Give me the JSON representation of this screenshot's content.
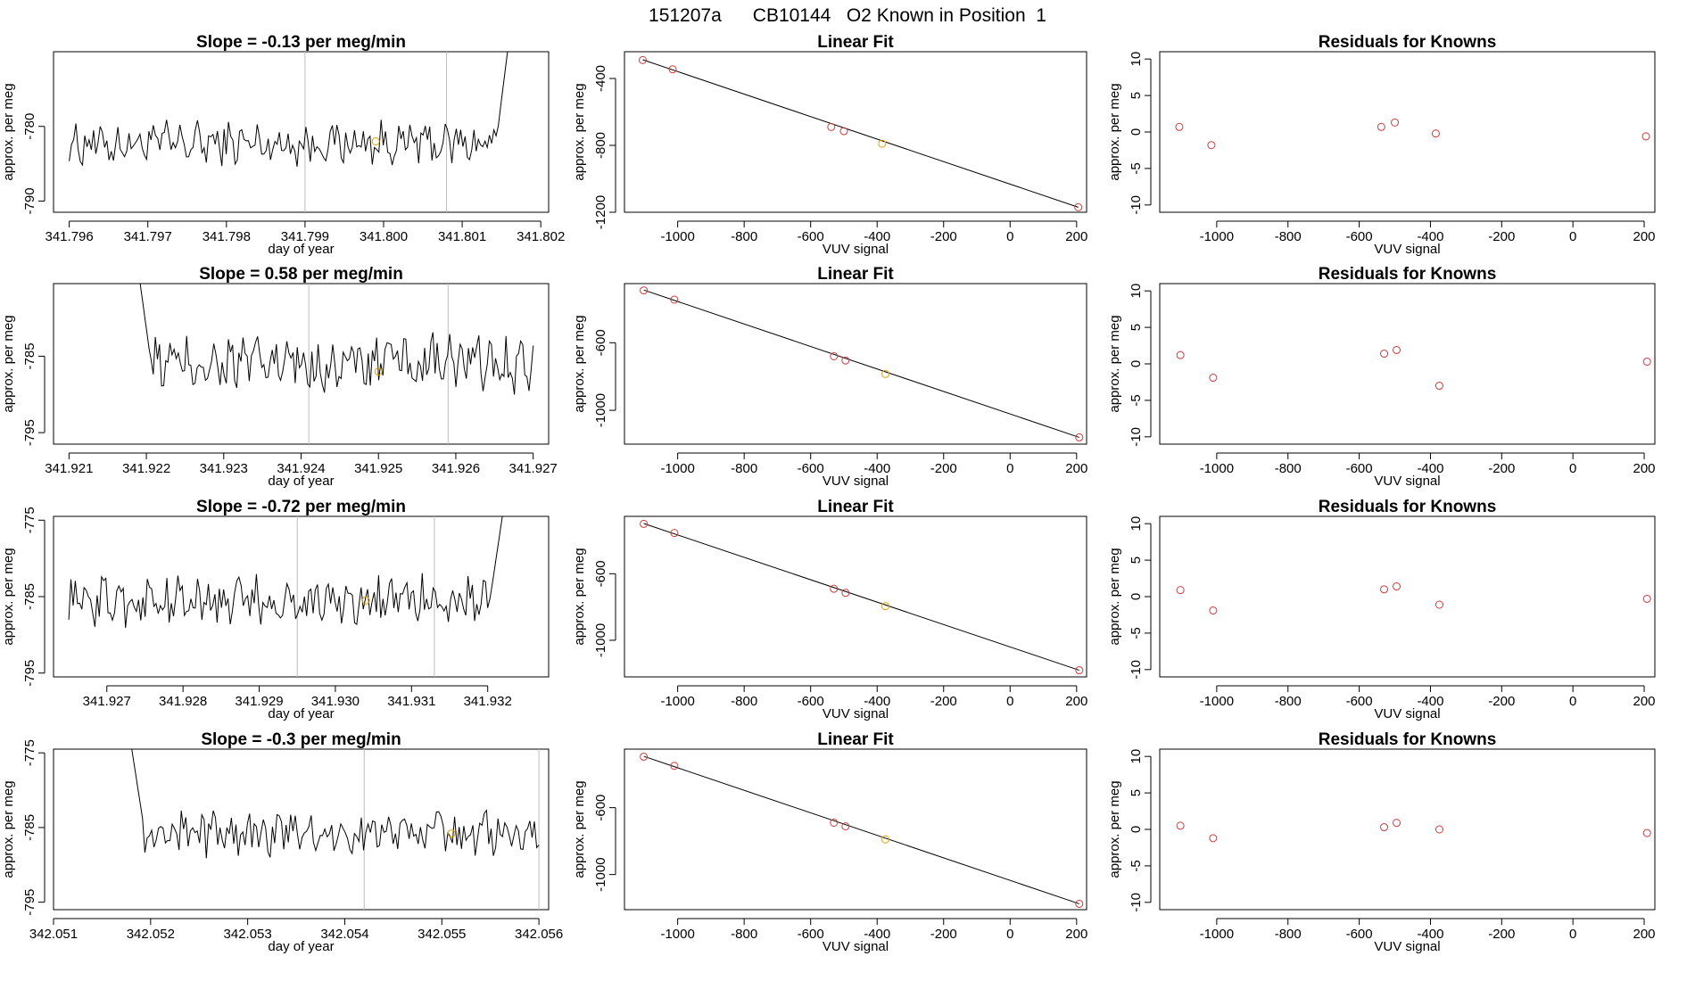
{
  "figure_title": "151207a      CB10144   O2 Known in Position  1",
  "chart_data": [
    {
      "type": "line",
      "title": "Slope =  -0.13  per meg/min",
      "xlabel": "day of year",
      "ylabel": "approx. per meg",
      "xlim": [
        341.7958,
        341.8021
      ],
      "ylim": [
        -791.5,
        -770.0
      ],
      "xticks": [
        "341.796",
        "341.797",
        "341.798",
        "341.799",
        "341.800",
        "341.801",
        "341.802"
      ],
      "yticks": [
        "-780",
        "-790"
      ],
      "vlines": [
        341.799,
        341.8008
      ],
      "x_start": 341.796,
      "x_end": 341.8016,
      "n_points": 200,
      "baseline": -782.3,
      "noise_amplitude": 2.4,
      "end_spike_to": -768.0,
      "marker": {
        "x": 341.7999,
        "y": -782.0,
        "color": "#E69F00"
      }
    },
    {
      "type": "scatter",
      "title": "Linear Fit",
      "xlabel": "VUV signal",
      "ylabel": "approx. per meg",
      "xlim": [
        -1160,
        230
      ],
      "ylim": [
        -1200,
        -240
      ],
      "xticks": [
        "-1000",
        "-800",
        "-600",
        "-400",
        "-200",
        "0",
        "200"
      ],
      "yticks": [
        "-400",
        "-800",
        "-1200"
      ],
      "x": [
        -1105,
        -1015,
        -538,
        -500,
        -385,
        205
      ],
      "y": [
        -290,
        -345,
        -690,
        -715,
        -790,
        -1170
      ],
      "known_index": 4,
      "fit_line": [
        [
          -1105,
          -288
        ],
        [
          205,
          -1170
        ]
      ]
    },
    {
      "type": "scatter",
      "title": "Residuals for Knowns",
      "xlabel": "VUV signal",
      "ylabel": "approx. per meg",
      "xlim": [
        -1160,
        230
      ],
      "ylim": [
        -11,
        11
      ],
      "xticks": [
        "-1000",
        "-800",
        "-600",
        "-400",
        "-200",
        "0",
        "200"
      ],
      "yticks": [
        "10",
        "5",
        "0",
        "-5",
        "-10"
      ],
      "x": [
        -1105,
        -1015,
        -538,
        -500,
        -385,
        205
      ],
      "y": [
        0.7,
        -1.8,
        0.7,
        1.3,
        -0.2,
        -0.6
      ]
    },
    {
      "type": "line",
      "title": "Slope =  0.58  per meg/min",
      "xlabel": "day of year",
      "ylabel": "approx. per meg",
      "xlim": [
        341.9208,
        341.9272
      ],
      "ylim": [
        -796.5,
        -775.5
      ],
      "xticks": [
        "341.921",
        "341.922",
        "341.923",
        "341.924",
        "341.925",
        "341.926",
        "341.927"
      ],
      "yticks": [
        "-785",
        "-795"
      ],
      "vlines": [
        341.9241,
        341.9259
      ],
      "x_start": 341.9219,
      "x_end": 341.927,
      "n_points": 190,
      "baseline": -786.0,
      "noise_amplitude": 3.0,
      "start_spike_from": -774.0,
      "marker": {
        "x": 341.925,
        "y": -787.0,
        "color": "#E69F00"
      }
    },
    {
      "type": "scatter",
      "title": "Linear Fit",
      "xlabel": "VUV signal",
      "ylabel": "approx. per meg",
      "xlim": [
        -1160,
        230
      ],
      "ylim": [
        -1200,
        -250
      ],
      "xticks": [
        "-1000",
        "-800",
        "-600",
        "-400",
        "-200",
        "0",
        "200"
      ],
      "yticks": [
        "-600",
        "-1000"
      ],
      "x": [
        -1102,
        -1010,
        -530,
        -495,
        -375,
        208
      ],
      "y": [
        -290,
        -345,
        -680,
        -705,
        -785,
        -1160
      ],
      "known_index": 4,
      "fit_line": [
        [
          -1102,
          -288
        ],
        [
          208,
          -1160
        ]
      ]
    },
    {
      "type": "scatter",
      "title": "Residuals for Knowns",
      "xlabel": "VUV signal",
      "ylabel": "approx. per meg",
      "xlim": [
        -1160,
        230
      ],
      "ylim": [
        -11,
        11
      ],
      "xticks": [
        "-1000",
        "-800",
        "-600",
        "-400",
        "-200",
        "0",
        "200"
      ],
      "yticks": [
        "10",
        "5",
        "0",
        "-5",
        "-10"
      ],
      "x": [
        -1102,
        -1010,
        -530,
        -495,
        -375,
        208
      ],
      "y": [
        1.2,
        -1.9,
        1.4,
        1.9,
        -3.0,
        0.3
      ]
    },
    {
      "type": "line",
      "title": "Slope =  -0.72  per meg/min",
      "xlabel": "day of year",
      "ylabel": "approx. per meg",
      "xlim": [
        341.9263,
        341.9328
      ],
      "ylim": [
        -795.5,
        -774.5
      ],
      "xticks": [
        "341.927",
        "341.928",
        "341.929",
        "341.930",
        "341.931",
        "341.932"
      ],
      "yticks": [
        "-775",
        "-785",
        "-795"
      ],
      "vlines": [
        341.9295,
        341.9313
      ],
      "x_start": 341.9265,
      "x_end": 341.9322,
      "n_points": 200,
      "baseline": -785.5,
      "noise_amplitude": 2.6,
      "end_spike_to": -774.0,
      "marker": {
        "x": 341.9304,
        "y": -785.5,
        "color": "#E69F00"
      }
    },
    {
      "type": "scatter",
      "title": "Linear Fit",
      "xlabel": "VUV signal",
      "ylabel": "approx. per meg",
      "xlim": [
        -1160,
        230
      ],
      "ylim": [
        -1220,
        -255
      ],
      "xticks": [
        "-1000",
        "-800",
        "-600",
        "-400",
        "-200",
        "0",
        "200"
      ],
      "yticks": [
        "-600",
        "-1000"
      ],
      "x": [
        -1102,
        -1010,
        -530,
        -495,
        -375,
        208
      ],
      "y": [
        -300,
        -355,
        -690,
        -715,
        -795,
        -1180
      ],
      "known_index": 4,
      "fit_line": [
        [
          -1102,
          -298
        ],
        [
          208,
          -1180
        ]
      ]
    },
    {
      "type": "scatter",
      "title": "Residuals for Knowns",
      "xlabel": "VUV signal",
      "ylabel": "approx. per meg",
      "xlim": [
        -1160,
        230
      ],
      "ylim": [
        -11,
        11
      ],
      "xticks": [
        "-1000",
        "-800",
        "-600",
        "-400",
        "-200",
        "0",
        "200"
      ],
      "yticks": [
        "10",
        "5",
        "0",
        "-5",
        "-10"
      ],
      "x": [
        -1102,
        -1010,
        -530,
        -495,
        -375,
        208
      ],
      "y": [
        0.9,
        -1.9,
        1.0,
        1.4,
        -1.1,
        -0.3
      ]
    },
    {
      "type": "line",
      "title": "Slope =  -0.3  per meg/min",
      "xlabel": "day of year",
      "ylabel": "approx. per meg",
      "xlim": [
        342.051,
        342.0561
      ],
      "ylim": [
        -796.0,
        -774.5
      ],
      "xticks": [
        "342.051",
        "342.052",
        "342.053",
        "342.054",
        "342.055",
        "342.056"
      ],
      "yticks": [
        "-775",
        "-785",
        "-795"
      ],
      "vlines": [
        342.0542,
        342.056
      ],
      "x_start": 342.0518,
      "x_end": 342.056,
      "n_points": 180,
      "baseline": -785.8,
      "noise_amplitude": 2.4,
      "start_spike_from": -774.0,
      "marker": {
        "x": 342.0551,
        "y": -785.8,
        "color": "#E69F00"
      }
    },
    {
      "type": "scatter",
      "title": "Linear Fit",
      "xlabel": "VUV signal",
      "ylabel": "approx. per meg",
      "xlim": [
        -1160,
        230
      ],
      "ylim": [
        -1210,
        -250
      ],
      "xticks": [
        "-1000",
        "-800",
        "-600",
        "-400",
        "-200",
        "0",
        "200"
      ],
      "yticks": [
        "-600",
        "-1000"
      ],
      "x": [
        -1102,
        -1010,
        -530,
        -495,
        -375,
        208
      ],
      "y": [
        -295,
        -350,
        -690,
        -712,
        -790,
        -1175
      ],
      "known_index": 4,
      "fit_line": [
        [
          -1102,
          -293
        ],
        [
          208,
          -1175
        ]
      ]
    },
    {
      "type": "scatter",
      "title": "Residuals for Knowns",
      "xlabel": "VUV signal",
      "ylabel": "approx. per meg",
      "xlim": [
        -1160,
        230
      ],
      "ylim": [
        -11,
        11
      ],
      "xticks": [
        "-1000",
        "-800",
        "-600",
        "-400",
        "-200",
        "0",
        "200"
      ],
      "yticks": [
        "10",
        "5",
        "0",
        "-5",
        "-10"
      ],
      "x": [
        -1102,
        -1010,
        -530,
        -495,
        -375,
        208
      ],
      "y": [
        0.5,
        -1.2,
        0.3,
        0.9,
        0.0,
        -0.5
      ]
    }
  ]
}
